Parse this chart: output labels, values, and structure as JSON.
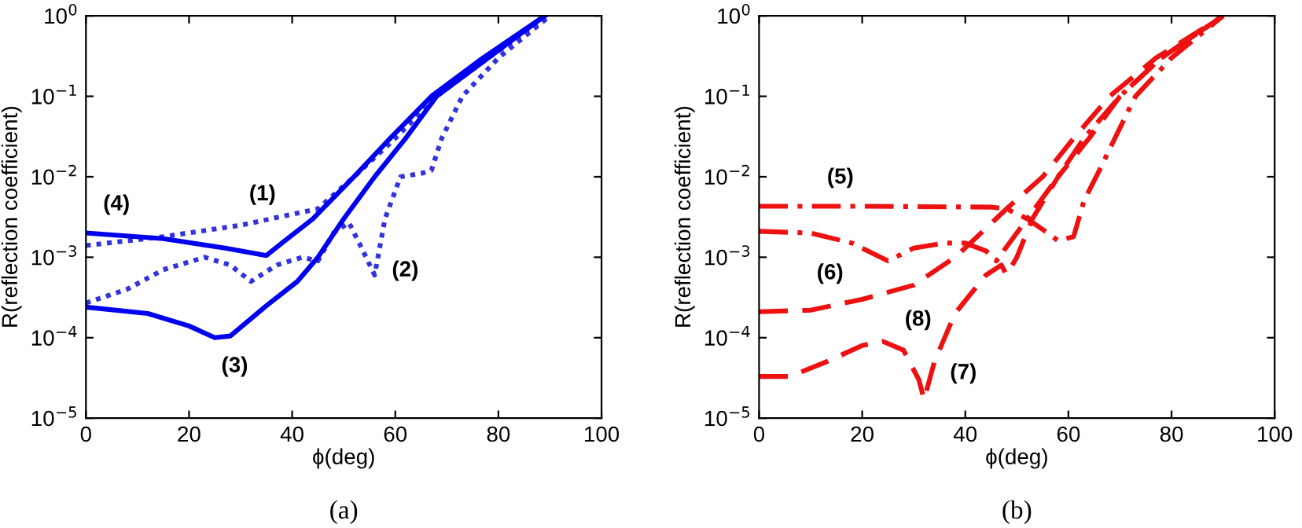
{
  "chart_data": [
    {
      "type": "line",
      "xlabel": "ϕ(deg)",
      "ylabel": "R(reflection coefficient)",
      "log": true,
      "grid": false,
      "legend": false,
      "marker": "none",
      "xlim": [
        0,
        100
      ],
      "xticks": [
        0,
        20,
        40,
        60,
        80,
        100
      ],
      "ylim": [
        1e-05,
        1
      ],
      "yticks": [
        {
          "value": 1e-05,
          "label": "10$^{−5}$"
        },
        {
          "value": 0.0001,
          "label": "10$^{−4}$"
        },
        {
          "value": 0.001,
          "label": "10$^{−3}$"
        },
        {
          "value": 0.01,
          "label": "10$^{−2}$"
        },
        {
          "value": 0.1,
          "label": "10$^{−1}$"
        },
        {
          "value": 1,
          "label": "10$^{0}$"
        }
      ],
      "series": [
        {
          "name": "(1)",
          "color": "#3333dd",
          "line_style": "dotted",
          "x": [
            0,
            15,
            30,
            45,
            52,
            60,
            68,
            78,
            90
          ],
          "values": [
            0.0014,
            0.0018,
            0.0025,
            0.004,
            0.01,
            0.03,
            0.1,
            0.3,
            1
          ]
        },
        {
          "name": "(2)",
          "color": "#3333dd",
          "line_style": "dotted",
          "x": [
            0,
            8,
            15,
            23,
            28,
            32,
            37,
            42,
            45,
            48,
            51,
            53,
            56,
            58,
            61,
            65,
            67,
            69,
            73,
            80,
            90
          ],
          "values": [
            0.00027,
            0.0004,
            0.0007,
            0.001,
            0.0008,
            0.0005,
            0.0008,
            0.001,
            0.0009,
            0.002,
            0.0027,
            0.0015,
            0.0006,
            0.003,
            0.01,
            0.011,
            0.012,
            0.03,
            0.1,
            0.3,
            1
          ]
        },
        {
          "name": "(3)",
          "color": "#0000ee",
          "line_style": "solid",
          "x": [
            0,
            12,
            20,
            25,
            28,
            35,
            41,
            45,
            50,
            56,
            62,
            68,
            78,
            89
          ],
          "values": [
            0.00024,
            0.0002,
            0.00014,
            0.0001,
            0.000105,
            0.00025,
            0.0005,
            0.001,
            0.003,
            0.01,
            0.03,
            0.1,
            0.3,
            1
          ]
        },
        {
          "name": "(4)",
          "color": "#0000ee",
          "line_style": "solid",
          "x": [
            0,
            15,
            27,
            35,
            38,
            44,
            52,
            59,
            67,
            77,
            89
          ],
          "values": [
            0.002,
            0.0017,
            0.0013,
            0.00105,
            0.0015,
            0.003,
            0.01,
            0.03,
            0.1,
            0.3,
            1
          ]
        }
      ],
      "annotations": [
        "(a)"
      ]
    },
    {
      "type": "line",
      "xlabel": "ϕ(deg)",
      "ylabel": "R(reflection coefficient)",
      "log": true,
      "grid": false,
      "legend": false,
      "marker": "none",
      "xlim": [
        0,
        100
      ],
      "xticks": [
        0,
        20,
        40,
        60,
        80,
        100
      ],
      "ylim": [
        1e-05,
        1
      ],
      "yticks": [
        {
          "value": 1e-05,
          "label": "10$^{−5}$"
        },
        {
          "value": 0.0001,
          "label": "10$^{−4}$"
        },
        {
          "value": 0.001,
          "label": "10$^{−3}$"
        },
        {
          "value": 0.01,
          "label": "10$^{−2}$"
        },
        {
          "value": 0.1,
          "label": "10$^{−1}$"
        },
        {
          "value": 1,
          "label": "10$^{0}$"
        }
      ],
      "series": [
        {
          "name": "(5)",
          "color": "#ee1111",
          "line_style": "dashdot",
          "x": [
            0,
            20,
            45,
            48,
            52,
            56,
            58,
            61,
            63,
            66,
            69,
            73,
            80,
            90
          ],
          "values": [
            0.0043,
            0.0043,
            0.0042,
            0.004,
            0.003,
            0.002,
            0.0016,
            0.0018,
            0.005,
            0.012,
            0.03,
            0.1,
            0.3,
            1
          ]
        },
        {
          "name": "(6)",
          "color": "#ee1111",
          "line_style": "dashdot",
          "x": [
            0,
            10,
            18,
            25,
            30,
            36,
            40,
            44,
            46,
            52,
            58,
            63,
            70,
            78,
            90
          ],
          "values": [
            0.0021,
            0.002,
            0.0015,
            0.0009,
            0.0013,
            0.0015,
            0.0015,
            0.0012,
            0.0009,
            0.003,
            0.01,
            0.03,
            0.1,
            0.3,
            1
          ]
        },
        {
          "name": "(7)",
          "color": "#ee1111",
          "line_style": "dashed",
          "x": [
            0,
            6,
            13,
            20,
            24,
            28,
            31,
            32,
            34,
            38,
            44,
            47,
            48,
            50,
            53,
            58,
            64,
            70,
            78,
            90
          ],
          "values": [
            3.3e-05,
            3.3e-05,
            5e-05,
            8e-05,
            9e-05,
            7e-05,
            3e-05,
            1.7e-05,
            5e-05,
            0.0002,
            0.0006,
            0.0008,
            0.0006,
            0.001,
            0.003,
            0.01,
            0.03,
            0.1,
            0.3,
            1
          ]
        },
        {
          "name": "(8)",
          "color": "#ee1111",
          "line_style": "dashed",
          "x": [
            0,
            10,
            20,
            30,
            38,
            41,
            48,
            55,
            61,
            68,
            77,
            90
          ],
          "values": [
            0.00021,
            0.00022,
            0.0003,
            0.00045,
            0.001,
            0.0015,
            0.004,
            0.01,
            0.03,
            0.1,
            0.3,
            1
          ]
        }
      ],
      "annotations": [
        "(b)"
      ]
    }
  ]
}
